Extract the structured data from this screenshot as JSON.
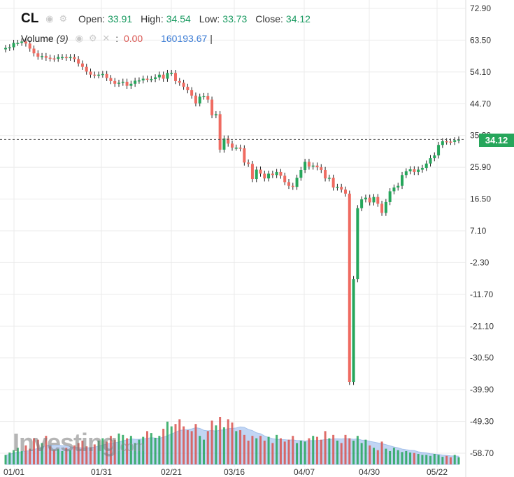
{
  "legend": {
    "symbol": "CL",
    "open_label": "Open:",
    "open": "33.91",
    "high_label": "High:",
    "high": "34.54",
    "low_label": "Low:",
    "low": "33.73",
    "close_label": "Close:",
    "close": "34.12",
    "volume_title": "Volume",
    "volume_param": "(9)",
    "volume_value": "0.00",
    "volume_total": "160193.67",
    "icon_names": [
      "eye-icon",
      "gear-icon",
      "close-icon"
    ]
  },
  "last_price": "34.12",
  "watermark": {
    "brand": "Investing",
    "suffix": ".com"
  },
  "colors": {
    "up": "#26a65b",
    "down": "#ef6b61",
    "ma_fill": "#8fb4ec",
    "grid": "#ebebeb"
  },
  "chart_data": {
    "type": "candlestick",
    "title": "CL",
    "y_ticks": [
      "72.90",
      "63.50",
      "54.10",
      "44.70",
      "35.30",
      "25.90",
      "16.50",
      "7.10",
      "-2.30",
      "-11.70",
      "-21.10",
      "-30.50",
      "-39.90",
      "-49.30",
      "-58.70"
    ],
    "x_ticks": [
      "01/01",
      "01/31",
      "02/21",
      "03/16",
      "04/07",
      "04/30",
      "05/22"
    ],
    "ylim": [
      -61,
      76
    ],
    "grid": true,
    "closes": [
      61.2,
      61.4,
      62.7,
      62.7,
      63.1,
      62.5,
      61.0,
      59.6,
      58.6,
      58.8,
      58.3,
      58.1,
      58.0,
      58.5,
      58.5,
      58.3,
      58.5,
      57.9,
      56.6,
      55.6,
      54.2,
      53.3,
      53.1,
      53.3,
      53.5,
      52.3,
      51.4,
      50.6,
      50.9,
      51.2,
      50.0,
      50.6,
      51.5,
      51.6,
      52.1,
      52.0,
      52.0,
      52.5,
      53.3,
      52.1,
      53.8,
      53.8,
      51.4,
      50.9,
      49.7,
      48.7,
      47.1,
      44.8,
      46.8,
      47.0,
      45.9,
      41.3,
      41.6,
      31.1,
      34.4,
      32.9,
      31.7,
      31.7,
      31.5,
      27.3,
      26.9,
      22.4,
      25.2,
      24.0,
      22.6,
      24.0,
      23.6,
      24.5,
      23.4,
      21.5,
      20.4,
      20.1,
      22.8,
      25.1,
      27.5,
      26.1,
      26.4,
      25.9,
      25.1,
      22.6,
      22.8,
      19.9,
      20.1,
      19.3,
      18.1,
      -37.6,
      -7.2,
      13.8,
      16.4,
      16.9,
      15.5,
      17.1,
      15.1,
      12.4,
      15.6,
      18.8,
      19.9,
      20.4,
      23.6,
      24.7,
      25.3,
      24.5,
      25.2,
      25.7,
      27.0,
      28.6,
      29.4,
      32.5,
      33.6,
      33.5,
      33.4,
      33.9,
      34.1
    ],
    "volume": [
      0.2,
      0.25,
      0.3,
      0.35,
      0.28,
      0.4,
      0.33,
      0.55,
      0.52,
      0.45,
      0.6,
      0.38,
      0.3,
      0.32,
      0.28,
      0.35,
      0.3,
      0.4,
      0.45,
      0.5,
      0.38,
      0.36,
      0.42,
      0.5,
      0.55,
      0.48,
      0.6,
      0.52,
      0.65,
      0.62,
      0.55,
      0.6,
      0.45,
      0.52,
      0.58,
      0.7,
      0.66,
      0.56,
      0.6,
      0.75,
      0.9,
      0.8,
      0.85,
      0.95,
      0.8,
      0.72,
      0.7,
      0.85,
      0.6,
      0.52,
      0.7,
      0.92,
      0.82,
      1.0,
      0.78,
      0.95,
      0.88,
      0.7,
      0.72,
      0.62,
      0.5,
      0.6,
      0.55,
      0.6,
      0.5,
      0.58,
      0.45,
      0.62,
      0.55,
      0.48,
      0.52,
      0.6,
      0.45,
      0.5,
      0.48,
      0.55,
      0.6,
      0.58,
      0.52,
      0.7,
      0.55,
      0.62,
      0.5,
      0.45,
      0.62,
      0.55,
      0.5,
      0.6,
      0.45,
      0.52,
      0.4,
      0.35,
      0.3,
      0.48,
      0.33,
      0.28,
      0.35,
      0.3,
      0.26,
      0.28,
      0.25,
      0.24,
      0.22,
      0.2,
      0.2,
      0.18,
      0.22,
      0.2,
      0.16,
      0.18,
      0.15,
      0.2,
      0.15
    ],
    "volume_ma_period": 9
  }
}
